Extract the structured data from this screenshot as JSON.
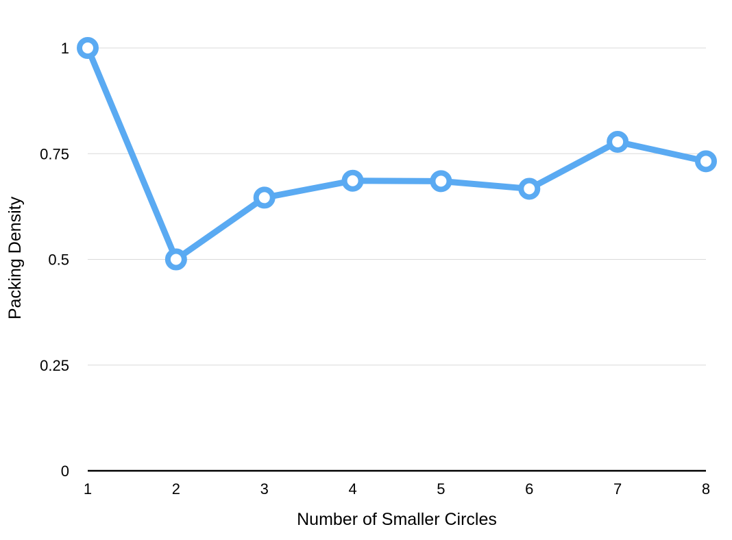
{
  "chart_data": {
    "type": "line",
    "title": "",
    "xlabel": "Number of Smaller Circles",
    "ylabel": "Packing Density",
    "x": [
      1,
      2,
      3,
      4,
      5,
      6,
      7,
      8
    ],
    "categories": [
      "1",
      "2",
      "3",
      "4",
      "5",
      "6",
      "7",
      "8"
    ],
    "series": [
      {
        "values": [
          1.0,
          0.5,
          0.646,
          0.686,
          0.685,
          0.667,
          0.778,
          0.732
        ],
        "color": "#5aaaf2"
      }
    ],
    "ylim": [
      0,
      1
    ],
    "yticks": [
      0,
      0.25,
      0.5,
      0.75,
      1
    ],
    "ytick_labels": [
      "0",
      "0.25",
      "0.5",
      "0.75",
      "1"
    ],
    "grid": true,
    "legend": "none",
    "marker": "hollow-circle",
    "background": "#ffffff",
    "gridline_color": "#d9d9d9"
  }
}
